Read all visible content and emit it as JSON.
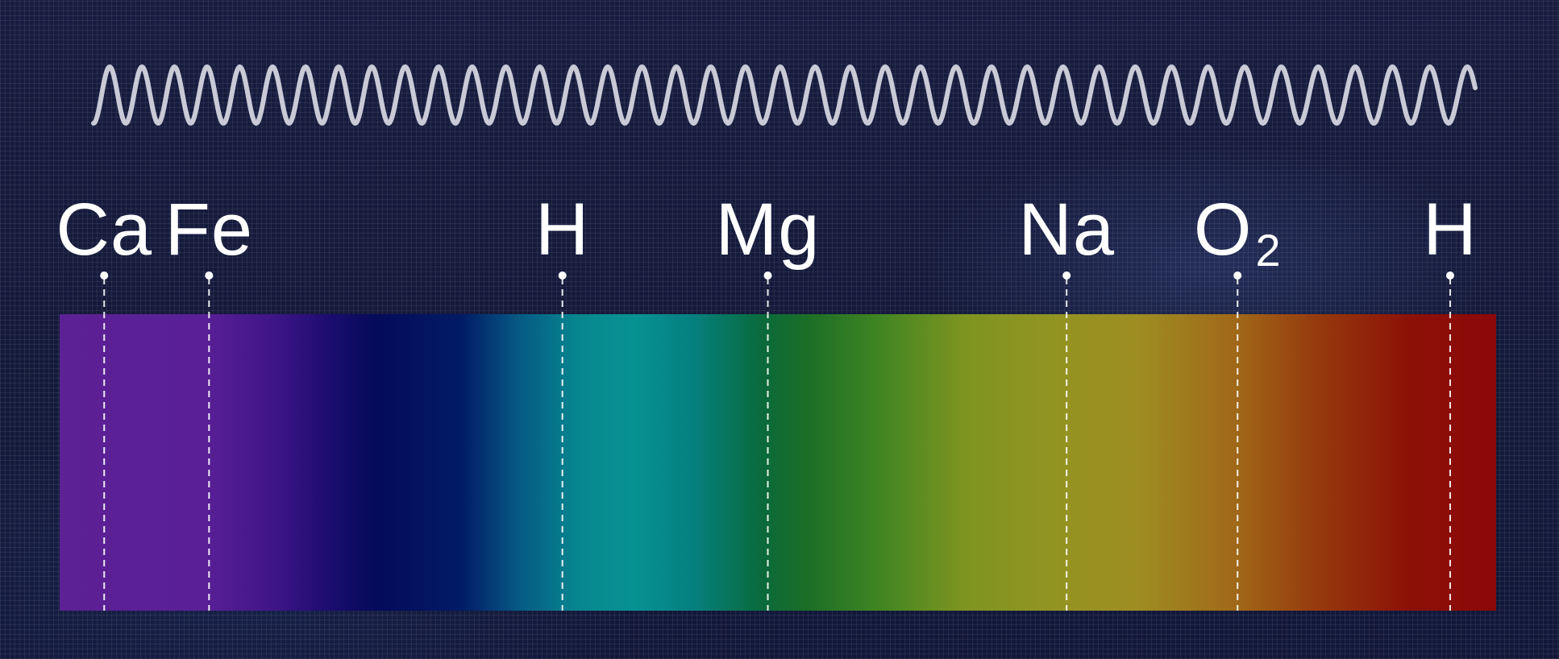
{
  "colors": {
    "background": "#151a3b",
    "wave": "#c9cad6",
    "label": "#ffffff",
    "spectrum_stops": [
      {
        "offset": 0.0,
        "color": "#5c2194"
      },
      {
        "offset": 0.1,
        "color": "#5a1f96"
      },
      {
        "offset": 0.15,
        "color": "#3e1586"
      },
      {
        "offset": 0.19,
        "color": "#1a0c6e"
      },
      {
        "offset": 0.22,
        "color": "#050a5a"
      },
      {
        "offset": 0.28,
        "color": "#021b66"
      },
      {
        "offset": 0.32,
        "color": "#065a84"
      },
      {
        "offset": 0.36,
        "color": "#07868f"
      },
      {
        "offset": 0.4,
        "color": "#079292"
      },
      {
        "offset": 0.44,
        "color": "#058080"
      },
      {
        "offset": 0.49,
        "color": "#0a6a3a"
      },
      {
        "offset": 0.52,
        "color": "#1b6e27"
      },
      {
        "offset": 0.57,
        "color": "#3f8522"
      },
      {
        "offset": 0.63,
        "color": "#7e9420"
      },
      {
        "offset": 0.69,
        "color": "#929422"
      },
      {
        "offset": 0.75,
        "color": "#9e8d22"
      },
      {
        "offset": 0.82,
        "color": "#a06718"
      },
      {
        "offset": 0.87,
        "color": "#973e0e"
      },
      {
        "offset": 0.94,
        "color": "#8c1006"
      },
      {
        "offset": 1.0,
        "color": "#8c0808"
      }
    ]
  },
  "markers": [
    {
      "base": "Ca",
      "sub": "",
      "position": 0.031
    },
    {
      "base": "Fe",
      "sub": "",
      "position": 0.104
    },
    {
      "base": "H",
      "sub": "",
      "position": 0.35
    },
    {
      "base": "Mg",
      "sub": "",
      "position": 0.493
    },
    {
      "base": "Na",
      "sub": "",
      "position": 0.701
    },
    {
      "base": "O",
      "sub": "2",
      "position": 0.82
    },
    {
      "base": "H",
      "sub": "",
      "position": 0.968
    }
  ]
}
